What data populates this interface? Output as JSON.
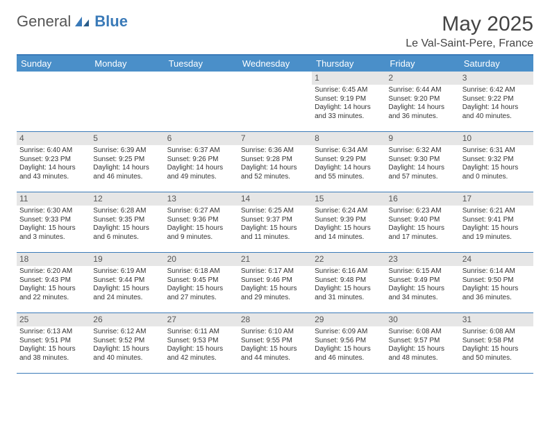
{
  "brand": {
    "general": "General",
    "blue": "Blue"
  },
  "title": "May 2025",
  "location": "Le Val-Saint-Pere, France",
  "colors": {
    "header_bg": "#4a8fc9",
    "border": "#3a7ab8",
    "daynum_bg": "#e6e6e6",
    "text": "#333333"
  },
  "day_headers": [
    "Sunday",
    "Monday",
    "Tuesday",
    "Wednesday",
    "Thursday",
    "Friday",
    "Saturday"
  ],
  "weeks": [
    [
      {
        "empty": true
      },
      {
        "empty": true
      },
      {
        "empty": true
      },
      {
        "empty": true
      },
      {
        "num": "1",
        "sunrise": "Sunrise: 6:45 AM",
        "sunset": "Sunset: 9:19 PM",
        "daylight": "Daylight: 14 hours and 33 minutes."
      },
      {
        "num": "2",
        "sunrise": "Sunrise: 6:44 AM",
        "sunset": "Sunset: 9:20 PM",
        "daylight": "Daylight: 14 hours and 36 minutes."
      },
      {
        "num": "3",
        "sunrise": "Sunrise: 6:42 AM",
        "sunset": "Sunset: 9:22 PM",
        "daylight": "Daylight: 14 hours and 40 minutes."
      }
    ],
    [
      {
        "num": "4",
        "sunrise": "Sunrise: 6:40 AM",
        "sunset": "Sunset: 9:23 PM",
        "daylight": "Daylight: 14 hours and 43 minutes."
      },
      {
        "num": "5",
        "sunrise": "Sunrise: 6:39 AM",
        "sunset": "Sunset: 9:25 PM",
        "daylight": "Daylight: 14 hours and 46 minutes."
      },
      {
        "num": "6",
        "sunrise": "Sunrise: 6:37 AM",
        "sunset": "Sunset: 9:26 PM",
        "daylight": "Daylight: 14 hours and 49 minutes."
      },
      {
        "num": "7",
        "sunrise": "Sunrise: 6:36 AM",
        "sunset": "Sunset: 9:28 PM",
        "daylight": "Daylight: 14 hours and 52 minutes."
      },
      {
        "num": "8",
        "sunrise": "Sunrise: 6:34 AM",
        "sunset": "Sunset: 9:29 PM",
        "daylight": "Daylight: 14 hours and 55 minutes."
      },
      {
        "num": "9",
        "sunrise": "Sunrise: 6:32 AM",
        "sunset": "Sunset: 9:30 PM",
        "daylight": "Daylight: 14 hours and 57 minutes."
      },
      {
        "num": "10",
        "sunrise": "Sunrise: 6:31 AM",
        "sunset": "Sunset: 9:32 PM",
        "daylight": "Daylight: 15 hours and 0 minutes."
      }
    ],
    [
      {
        "num": "11",
        "sunrise": "Sunrise: 6:30 AM",
        "sunset": "Sunset: 9:33 PM",
        "daylight": "Daylight: 15 hours and 3 minutes."
      },
      {
        "num": "12",
        "sunrise": "Sunrise: 6:28 AM",
        "sunset": "Sunset: 9:35 PM",
        "daylight": "Daylight: 15 hours and 6 minutes."
      },
      {
        "num": "13",
        "sunrise": "Sunrise: 6:27 AM",
        "sunset": "Sunset: 9:36 PM",
        "daylight": "Daylight: 15 hours and 9 minutes."
      },
      {
        "num": "14",
        "sunrise": "Sunrise: 6:25 AM",
        "sunset": "Sunset: 9:37 PM",
        "daylight": "Daylight: 15 hours and 11 minutes."
      },
      {
        "num": "15",
        "sunrise": "Sunrise: 6:24 AM",
        "sunset": "Sunset: 9:39 PM",
        "daylight": "Daylight: 15 hours and 14 minutes."
      },
      {
        "num": "16",
        "sunrise": "Sunrise: 6:23 AM",
        "sunset": "Sunset: 9:40 PM",
        "daylight": "Daylight: 15 hours and 17 minutes."
      },
      {
        "num": "17",
        "sunrise": "Sunrise: 6:21 AM",
        "sunset": "Sunset: 9:41 PM",
        "daylight": "Daylight: 15 hours and 19 minutes."
      }
    ],
    [
      {
        "num": "18",
        "sunrise": "Sunrise: 6:20 AM",
        "sunset": "Sunset: 9:43 PM",
        "daylight": "Daylight: 15 hours and 22 minutes."
      },
      {
        "num": "19",
        "sunrise": "Sunrise: 6:19 AM",
        "sunset": "Sunset: 9:44 PM",
        "daylight": "Daylight: 15 hours and 24 minutes."
      },
      {
        "num": "20",
        "sunrise": "Sunrise: 6:18 AM",
        "sunset": "Sunset: 9:45 PM",
        "daylight": "Daylight: 15 hours and 27 minutes."
      },
      {
        "num": "21",
        "sunrise": "Sunrise: 6:17 AM",
        "sunset": "Sunset: 9:46 PM",
        "daylight": "Daylight: 15 hours and 29 minutes."
      },
      {
        "num": "22",
        "sunrise": "Sunrise: 6:16 AM",
        "sunset": "Sunset: 9:48 PM",
        "daylight": "Daylight: 15 hours and 31 minutes."
      },
      {
        "num": "23",
        "sunrise": "Sunrise: 6:15 AM",
        "sunset": "Sunset: 9:49 PM",
        "daylight": "Daylight: 15 hours and 34 minutes."
      },
      {
        "num": "24",
        "sunrise": "Sunrise: 6:14 AM",
        "sunset": "Sunset: 9:50 PM",
        "daylight": "Daylight: 15 hours and 36 minutes."
      }
    ],
    [
      {
        "num": "25",
        "sunrise": "Sunrise: 6:13 AM",
        "sunset": "Sunset: 9:51 PM",
        "daylight": "Daylight: 15 hours and 38 minutes."
      },
      {
        "num": "26",
        "sunrise": "Sunrise: 6:12 AM",
        "sunset": "Sunset: 9:52 PM",
        "daylight": "Daylight: 15 hours and 40 minutes."
      },
      {
        "num": "27",
        "sunrise": "Sunrise: 6:11 AM",
        "sunset": "Sunset: 9:53 PM",
        "daylight": "Daylight: 15 hours and 42 minutes."
      },
      {
        "num": "28",
        "sunrise": "Sunrise: 6:10 AM",
        "sunset": "Sunset: 9:55 PM",
        "daylight": "Daylight: 15 hours and 44 minutes."
      },
      {
        "num": "29",
        "sunrise": "Sunrise: 6:09 AM",
        "sunset": "Sunset: 9:56 PM",
        "daylight": "Daylight: 15 hours and 46 minutes."
      },
      {
        "num": "30",
        "sunrise": "Sunrise: 6:08 AM",
        "sunset": "Sunset: 9:57 PM",
        "daylight": "Daylight: 15 hours and 48 minutes."
      },
      {
        "num": "31",
        "sunrise": "Sunrise: 6:08 AM",
        "sunset": "Sunset: 9:58 PM",
        "daylight": "Daylight: 15 hours and 50 minutes."
      }
    ]
  ]
}
